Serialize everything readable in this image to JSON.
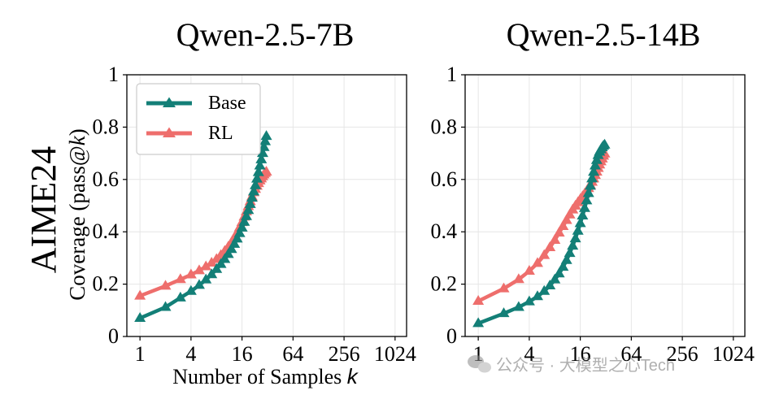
{
  "figure": {
    "row_label": "AIME24",
    "ylabel_prefix": "Coverage (pass@",
    "ylabel_k": "k",
    "ylabel_suffix": ")",
    "xlabel_prefix": "Number of Samples ",
    "xlabel_k": "k"
  },
  "watermark": {
    "text": "公众号 · 大模型之心Tech"
  },
  "colors": {
    "base": "#137f77",
    "rl": "#ee6e6c",
    "grid": "#e6e6e6",
    "axis": "#000000"
  },
  "chart_data": [
    {
      "type": "line",
      "title": "Qwen-2.5-7B",
      "x": [
        1,
        2,
        3,
        4,
        5,
        6,
        7,
        8,
        9,
        10,
        11,
        12,
        13,
        14,
        15,
        16,
        17,
        18,
        19,
        20,
        21,
        22,
        23,
        24,
        25,
        26,
        27,
        28,
        29,
        30,
        31
      ],
      "x_scale": "log2",
      "xlim": [
        0.7,
        1400
      ],
      "xticks": [
        "1",
        "4",
        "16",
        "64",
        "256",
        "1024"
      ],
      "xtick_values": [
        1,
        4,
        16,
        64,
        256,
        1024
      ],
      "ylim": [
        0,
        1
      ],
      "yticks": [
        "0",
        "0.2",
        "0.4",
        "0.6",
        "0.8",
        "1"
      ],
      "ytick_values": [
        0,
        0.2,
        0.4,
        0.6,
        0.8,
        1
      ],
      "grid": true,
      "legend": "top-left",
      "series": [
        {
          "name": "Base",
          "values": [
            0.07,
            0.112,
            0.148,
            0.173,
            0.196,
            0.217,
            0.237,
            0.257,
            0.276,
            0.295,
            0.314,
            0.333,
            0.353,
            0.373,
            0.394,
            0.415,
            0.437,
            0.459,
            0.482,
            0.505,
            0.529,
            0.553,
            0.577,
            0.602,
            0.627,
            0.652,
            0.676,
            0.7,
            0.723,
            0.745,
            0.765
          ]
        },
        {
          "name": "RL",
          "values": [
            0.155,
            0.193,
            0.218,
            0.236,
            0.252,
            0.267,
            0.281,
            0.295,
            0.31,
            0.326,
            0.342,
            0.359,
            0.377,
            0.396,
            0.416,
            0.436,
            0.457,
            0.477,
            0.497,
            0.516,
            0.534,
            0.55,
            0.563,
            0.575,
            0.585,
            0.595,
            0.603,
            0.611,
            0.618,
            0.624,
            0.629
          ]
        }
      ]
    },
    {
      "type": "line",
      "title": "Qwen-2.5-14B",
      "x": [
        1,
        2,
        3,
        4,
        5,
        6,
        7,
        8,
        9,
        10,
        11,
        12,
        13,
        14,
        15,
        16,
        17,
        18,
        19,
        20,
        21,
        22,
        23,
        24,
        25,
        26,
        27,
        28,
        29,
        30,
        31
      ],
      "x_scale": "log2",
      "xlim": [
        0.7,
        1400
      ],
      "xticks": [
        "1",
        "4",
        "16",
        "64",
        "256",
        "1024"
      ],
      "xtick_values": [
        1,
        4,
        16,
        64,
        256,
        1024
      ],
      "ylim": [
        0,
        1
      ],
      "yticks": [
        "0",
        "0.2",
        "0.4",
        "0.6",
        "0.8",
        "1"
      ],
      "ytick_values": [
        0,
        0.2,
        0.4,
        0.6,
        0.8,
        1
      ],
      "grid": true,
      "legend": "none",
      "series": [
        {
          "name": "Base",
          "values": [
            0.05,
            0.088,
            0.112,
            0.133,
            0.153,
            0.173,
            0.194,
            0.217,
            0.24,
            0.265,
            0.291,
            0.318,
            0.346,
            0.374,
            0.403,
            0.432,
            0.461,
            0.49,
            0.519,
            0.547,
            0.575,
            0.603,
            0.628,
            0.652,
            0.673,
            0.692,
            0.705,
            0.714,
            0.722,
            0.728,
            0.732
          ]
        },
        {
          "name": "RL",
          "values": [
            0.135,
            0.183,
            0.218,
            0.25,
            0.28,
            0.31,
            0.34,
            0.368,
            0.396,
            0.421,
            0.444,
            0.465,
            0.484,
            0.499,
            0.512,
            0.524,
            0.535,
            0.545,
            0.555,
            0.566,
            0.578,
            0.59,
            0.603,
            0.616,
            0.629,
            0.643,
            0.656,
            0.668,
            0.679,
            0.69,
            0.698
          ]
        }
      ]
    }
  ]
}
